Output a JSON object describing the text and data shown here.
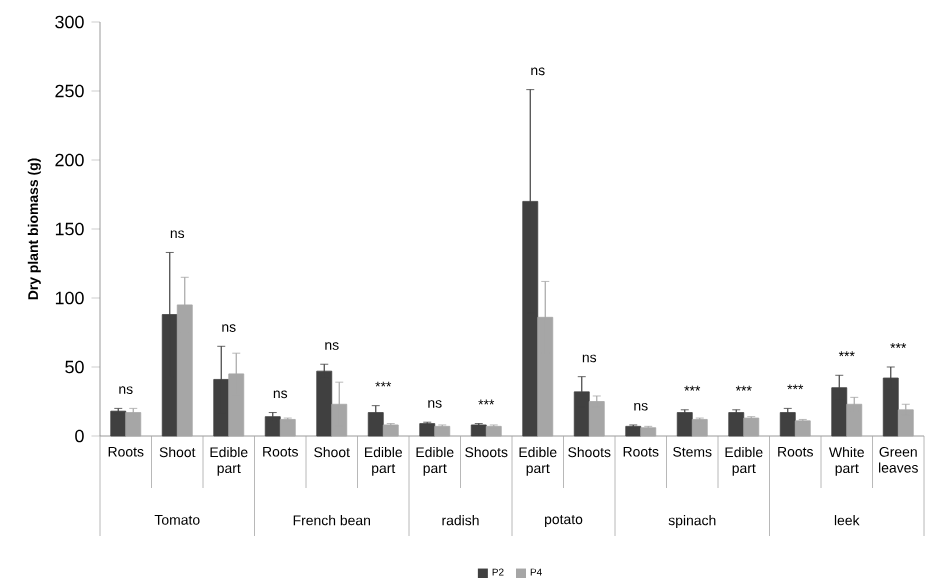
{
  "chart_data": {
    "type": "bar",
    "ylabel": "Dry plant biomass (g)",
    "categories": [
      "Roots",
      "Shoot",
      "Edible part",
      "Roots",
      "Shoot",
      "Edible part",
      "Edible part",
      "Shoots",
      "Edible part",
      "Shoots",
      "Roots",
      "Stems",
      "Edible part",
      "Roots",
      "White part",
      "Green leaves"
    ],
    "series": [
      {
        "name": "P2",
        "color": "#404040",
        "values": [
          18,
          88,
          41,
          14,
          47,
          17,
          9,
          8,
          170,
          32,
          7,
          17,
          17,
          17,
          35,
          42
        ],
        "errors": [
          2,
          45,
          24,
          3,
          5,
          5,
          1,
          1,
          81,
          11,
          1,
          2,
          2,
          3,
          9,
          8
        ]
      },
      {
        "name": "P4",
        "color": "#a6a6a6",
        "values": [
          17,
          95,
          45,
          12,
          23,
          8,
          7,
          7,
          86,
          25,
          6,
          12,
          13,
          11,
          23,
          19
        ],
        "errors": [
          3,
          20,
          15,
          1,
          16,
          1,
          1,
          1,
          26,
          4,
          1,
          1,
          1,
          1,
          5,
          4
        ]
      }
    ],
    "ylim": [
      0,
      300
    ],
    "yticks": [
      0,
      50,
      100,
      150,
      200,
      250,
      300
    ],
    "legend": "bottom",
    "annotations": [
      "ns",
      "ns",
      "ns",
      "ns",
      "ns",
      "***",
      "ns",
      "***",
      "ns",
      "ns",
      "ns",
      "***",
      "***",
      "***",
      "***",
      "***",
      "Tomato",
      "French bean",
      "radish",
      "potato",
      "spinach",
      "leek"
    ]
  }
}
